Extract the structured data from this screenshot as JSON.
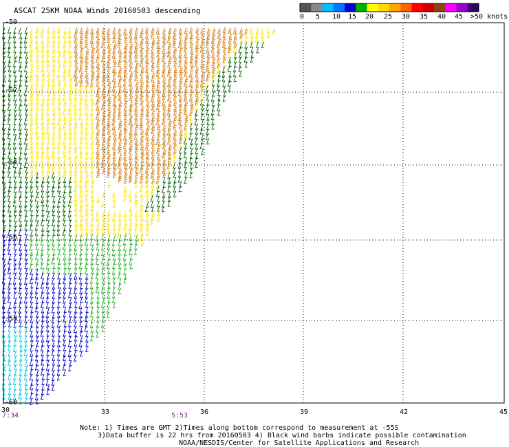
{
  "header": {
    "title": "ASCAT 25KM NOAA Winds 20160503 descending"
  },
  "legend": {
    "labels": [
      "0",
      "5",
      "10",
      "15",
      "20",
      "25",
      "30",
      "35",
      "40",
      "45",
      ">50 knots"
    ],
    "colors": [
      "#555555",
      "#888888",
      "#00bfff",
      "#0077ff",
      "#0000cc",
      "#00b000",
      "#ffff00",
      "#ffd700",
      "#ffa500",
      "#ff6600",
      "#ff0000",
      "#cc0000",
      "#8b4513",
      "#ff00ff",
      "#9900cc",
      "#330066"
    ]
  },
  "axes": {
    "lon_ticks": [
      "30",
      "33",
      "36",
      "39",
      "42",
      "45"
    ],
    "lat_ticks": [
      "-50",
      "-52",
      "-54",
      "-56",
      "-58",
      "-60"
    ]
  },
  "times": {
    "left": "7:34",
    "mid": "5:53"
  },
  "notes": {
    "line1": "Note: 1) Times are GMT 2)Times along bottom correspond to measurement at -55S",
    "line2": "3)Data buffer is 22 hrs from 20160503 4) Black wind barbs indicate possible contamination",
    "line3": "NOAA/NESDIS/Center for Satellite Applications and Research"
  },
  "wind_colors": {
    "dark_green": "#006400",
    "green": "#22b022",
    "yellow": "#ffe400",
    "orange": "#d2841e",
    "blue": "#0000c8",
    "cyan": "#00c8e0"
  }
}
